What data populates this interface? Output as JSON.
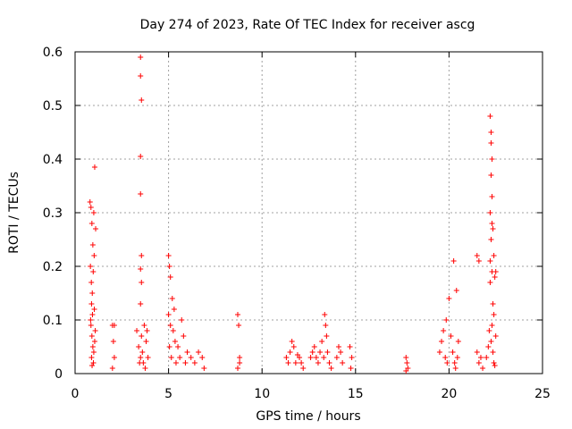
{
  "chart_data": {
    "type": "scatter",
    "title": "Day 274 of 2023, Rate Of TEC Index for receiver ascg",
    "xlabel": "GPS time / hours",
    "ylabel": "ROTI / TECUs",
    "xlim": [
      0,
      25
    ],
    "ylim": [
      0,
      0.6
    ],
    "xticks": [
      0,
      5,
      10,
      15,
      20,
      25
    ],
    "xtick_labels": [
      "0",
      "5",
      "10",
      "15",
      "20",
      "25"
    ],
    "yticks": [
      0,
      0.1,
      0.2,
      0.3,
      0.4,
      0.5,
      0.6
    ],
    "ytick_labels": [
      "0",
      "0.1",
      "0.2",
      "0.3",
      "0.4",
      "0.5",
      "0.6"
    ],
    "grid": true,
    "marker": "plus",
    "color": "#ff0000",
    "series": [
      {
        "name": "ROTI",
        "points": [
          [
            0.8,
            0.32
          ],
          [
            0.85,
            0.31
          ],
          [
            0.9,
            0.28
          ],
          [
            0.95,
            0.24
          ],
          [
            1.0,
            0.3
          ],
          [
            1.05,
            0.385
          ],
          [
            1.1,
            0.27
          ],
          [
            0.82,
            0.2
          ],
          [
            0.87,
            0.17
          ],
          [
            0.92,
            0.15
          ],
          [
            0.97,
            0.19
          ],
          [
            1.02,
            0.22
          ],
          [
            0.88,
            0.13
          ],
          [
            0.93,
            0.11
          ],
          [
            0.85,
            0.09
          ],
          [
            0.9,
            0.07
          ],
          [
            0.95,
            0.05
          ],
          [
            1.0,
            0.04
          ],
          [
            1.05,
            0.06
          ],
          [
            0.88,
            0.03
          ],
          [
            0.98,
            0.02
          ],
          [
            1.08,
            0.08
          ],
          [
            0.83,
            0.1
          ],
          [
            1.03,
            0.12
          ],
          [
            0.91,
            0.015
          ],
          [
            2.0,
            0.09
          ],
          [
            2.05,
            0.06
          ],
          [
            2.1,
            0.03
          ],
          [
            2.0,
            0.01
          ],
          [
            2.1,
            0.09
          ],
          [
            3.3,
            0.08
          ],
          [
            3.4,
            0.05
          ],
          [
            3.5,
            0.03
          ],
          [
            3.45,
            0.02
          ],
          [
            3.55,
            0.07
          ],
          [
            3.6,
            0.04
          ],
          [
            3.5,
            0.59
          ],
          [
            3.5,
            0.555
          ],
          [
            3.55,
            0.51
          ],
          [
            3.5,
            0.405
          ],
          [
            3.5,
            0.335
          ],
          [
            3.55,
            0.22
          ],
          [
            3.5,
            0.195
          ],
          [
            3.55,
            0.17
          ],
          [
            3.5,
            0.13
          ],
          [
            3.7,
            0.09
          ],
          [
            3.8,
            0.06
          ],
          [
            3.9,
            0.03
          ],
          [
            3.75,
            0.01
          ],
          [
            3.85,
            0.08
          ],
          [
            3.65,
            0.02
          ],
          [
            5.0,
            0.22
          ],
          [
            5.05,
            0.2
          ],
          [
            5.1,
            0.18
          ],
          [
            5.0,
            0.11
          ],
          [
            5.1,
            0.09
          ],
          [
            5.05,
            0.05
          ],
          [
            5.15,
            0.03
          ],
          [
            5.2,
            0.14
          ],
          [
            5.3,
            0.12
          ],
          [
            5.25,
            0.08
          ],
          [
            5.35,
            0.06
          ],
          [
            5.4,
            0.02
          ],
          [
            5.5,
            0.05
          ],
          [
            5.6,
            0.03
          ],
          [
            5.7,
            0.1
          ],
          [
            5.8,
            0.07
          ],
          [
            5.9,
            0.02
          ],
          [
            6.0,
            0.04
          ],
          [
            6.2,
            0.03
          ],
          [
            6.4,
            0.02
          ],
          [
            6.6,
            0.04
          ],
          [
            6.8,
            0.03
          ],
          [
            6.9,
            0.01
          ],
          [
            8.7,
            0.11
          ],
          [
            8.75,
            0.09
          ],
          [
            8.8,
            0.03
          ],
          [
            8.7,
            0.01
          ],
          [
            8.8,
            0.02
          ],
          [
            11.3,
            0.03
          ],
          [
            11.4,
            0.02
          ],
          [
            11.5,
            0.04
          ],
          [
            11.6,
            0.06
          ],
          [
            11.7,
            0.05
          ],
          [
            11.8,
            0.02
          ],
          [
            11.9,
            0.035
          ],
          [
            12.0,
            0.03
          ],
          [
            12.1,
            0.02
          ],
          [
            12.2,
            0.01
          ],
          [
            12.6,
            0.03
          ],
          [
            12.7,
            0.04
          ],
          [
            12.8,
            0.05
          ],
          [
            12.9,
            0.03
          ],
          [
            13.0,
            0.02
          ],
          [
            13.1,
            0.04
          ],
          [
            13.2,
            0.06
          ],
          [
            13.3,
            0.03
          ],
          [
            13.35,
            0.11
          ],
          [
            13.4,
            0.09
          ],
          [
            13.45,
            0.07
          ],
          [
            13.5,
            0.04
          ],
          [
            13.6,
            0.02
          ],
          [
            13.7,
            0.01
          ],
          [
            14.0,
            0.03
          ],
          [
            14.1,
            0.05
          ],
          [
            14.2,
            0.04
          ],
          [
            14.3,
            0.02
          ],
          [
            14.7,
            0.05
          ],
          [
            14.8,
            0.03
          ],
          [
            14.75,
            0.01
          ],
          [
            17.7,
            0.03
          ],
          [
            17.75,
            0.02
          ],
          [
            17.8,
            0.01
          ],
          [
            17.7,
            0.005
          ],
          [
            19.5,
            0.04
          ],
          [
            19.6,
            0.06
          ],
          [
            19.7,
            0.08
          ],
          [
            19.8,
            0.03
          ],
          [
            19.9,
            0.02
          ],
          [
            19.85,
            0.1
          ],
          [
            20.0,
            0.14
          ],
          [
            20.1,
            0.07
          ],
          [
            20.2,
            0.04
          ],
          [
            20.25,
            0.21
          ],
          [
            20.3,
            0.02
          ],
          [
            20.4,
            0.155
          ],
          [
            20.5,
            0.06
          ],
          [
            20.45,
            0.03
          ],
          [
            20.35,
            0.01
          ],
          [
            21.5,
            0.22
          ],
          [
            21.6,
            0.21
          ],
          [
            21.7,
            0.03
          ],
          [
            21.6,
            0.02
          ],
          [
            21.5,
            0.04
          ],
          [
            21.8,
            0.01
          ],
          [
            22.0,
            0.03
          ],
          [
            22.1,
            0.05
          ],
          [
            22.15,
            0.08
          ],
          [
            22.2,
            0.48
          ],
          [
            22.25,
            0.45
          ],
          [
            22.25,
            0.43
          ],
          [
            22.3,
            0.4
          ],
          [
            22.25,
            0.37
          ],
          [
            22.3,
            0.33
          ],
          [
            22.2,
            0.3
          ],
          [
            22.3,
            0.28
          ],
          [
            22.35,
            0.27
          ],
          [
            22.25,
            0.25
          ],
          [
            22.2,
            0.21
          ],
          [
            22.4,
            0.22
          ],
          [
            22.3,
            0.19
          ],
          [
            22.2,
            0.17
          ],
          [
            22.35,
            0.13
          ],
          [
            22.4,
            0.11
          ],
          [
            22.3,
            0.09
          ],
          [
            22.25,
            0.06
          ],
          [
            22.35,
            0.04
          ],
          [
            22.4,
            0.02
          ],
          [
            22.45,
            0.015
          ],
          [
            22.5,
            0.19
          ],
          [
            22.5,
            0.07
          ],
          [
            22.45,
            0.18
          ]
        ]
      }
    ]
  }
}
